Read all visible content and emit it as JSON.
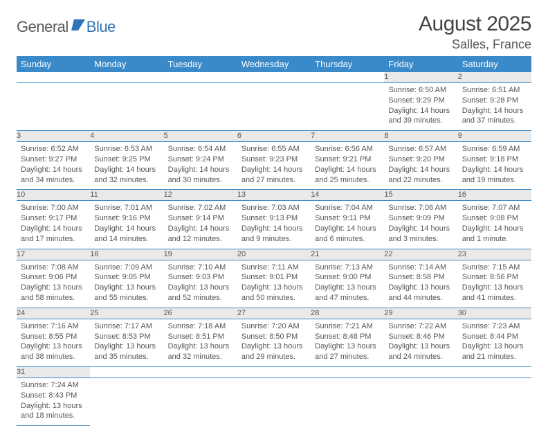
{
  "logo": {
    "word1": "General",
    "word2": "Blue",
    "icon_color": "#2e75b6"
  },
  "header": {
    "title": "August 2025",
    "location": "Salles, France"
  },
  "colors": {
    "header_bg": "#3a8ac9",
    "header_text": "#ffffff",
    "daynum_bg": "#e9e9e9",
    "row_divider": "#3a8ac9",
    "body_text": "#555555",
    "logo_gray": "#5a5a5a",
    "logo_blue": "#2e75b6"
  },
  "weekdays": [
    "Sunday",
    "Monday",
    "Tuesday",
    "Wednesday",
    "Thursday",
    "Friday",
    "Saturday"
  ],
  "weeks": [
    {
      "days": [
        null,
        null,
        null,
        null,
        null,
        {
          "n": "1",
          "sunrise": "6:50 AM",
          "sunset": "9:29 PM",
          "day_h": 14,
          "day_m": 39
        },
        {
          "n": "2",
          "sunrise": "6:51 AM",
          "sunset": "9:28 PM",
          "day_h": 14,
          "day_m": 37
        }
      ]
    },
    {
      "days": [
        {
          "n": "3",
          "sunrise": "6:52 AM",
          "sunset": "9:27 PM",
          "day_h": 14,
          "day_m": 34
        },
        {
          "n": "4",
          "sunrise": "6:53 AM",
          "sunset": "9:25 PM",
          "day_h": 14,
          "day_m": 32
        },
        {
          "n": "5",
          "sunrise": "6:54 AM",
          "sunset": "9:24 PM",
          "day_h": 14,
          "day_m": 30
        },
        {
          "n": "6",
          "sunrise": "6:55 AM",
          "sunset": "9:23 PM",
          "day_h": 14,
          "day_m": 27
        },
        {
          "n": "7",
          "sunrise": "6:56 AM",
          "sunset": "9:21 PM",
          "day_h": 14,
          "day_m": 25
        },
        {
          "n": "8",
          "sunrise": "6:57 AM",
          "sunset": "9:20 PM",
          "day_h": 14,
          "day_m": 22
        },
        {
          "n": "9",
          "sunrise": "6:59 AM",
          "sunset": "9:18 PM",
          "day_h": 14,
          "day_m": 19
        }
      ]
    },
    {
      "days": [
        {
          "n": "10",
          "sunrise": "7:00 AM",
          "sunset": "9:17 PM",
          "day_h": 14,
          "day_m": 17
        },
        {
          "n": "11",
          "sunrise": "7:01 AM",
          "sunset": "9:16 PM",
          "day_h": 14,
          "day_m": 14
        },
        {
          "n": "12",
          "sunrise": "7:02 AM",
          "sunset": "9:14 PM",
          "day_h": 14,
          "day_m": 12
        },
        {
          "n": "13",
          "sunrise": "7:03 AM",
          "sunset": "9:13 PM",
          "day_h": 14,
          "day_m": 9
        },
        {
          "n": "14",
          "sunrise": "7:04 AM",
          "sunset": "9:11 PM",
          "day_h": 14,
          "day_m": 6
        },
        {
          "n": "15",
          "sunrise": "7:06 AM",
          "sunset": "9:09 PM",
          "day_h": 14,
          "day_m": 3
        },
        {
          "n": "16",
          "sunrise": "7:07 AM",
          "sunset": "9:08 PM",
          "day_h": 14,
          "day_m": 1
        }
      ]
    },
    {
      "days": [
        {
          "n": "17",
          "sunrise": "7:08 AM",
          "sunset": "9:06 PM",
          "day_h": 13,
          "day_m": 58
        },
        {
          "n": "18",
          "sunrise": "7:09 AM",
          "sunset": "9:05 PM",
          "day_h": 13,
          "day_m": 55
        },
        {
          "n": "19",
          "sunrise": "7:10 AM",
          "sunset": "9:03 PM",
          "day_h": 13,
          "day_m": 52
        },
        {
          "n": "20",
          "sunrise": "7:11 AM",
          "sunset": "9:01 PM",
          "day_h": 13,
          "day_m": 50
        },
        {
          "n": "21",
          "sunrise": "7:13 AM",
          "sunset": "9:00 PM",
          "day_h": 13,
          "day_m": 47
        },
        {
          "n": "22",
          "sunrise": "7:14 AM",
          "sunset": "8:58 PM",
          "day_h": 13,
          "day_m": 44
        },
        {
          "n": "23",
          "sunrise": "7:15 AM",
          "sunset": "8:56 PM",
          "day_h": 13,
          "day_m": 41
        }
      ]
    },
    {
      "days": [
        {
          "n": "24",
          "sunrise": "7:16 AM",
          "sunset": "8:55 PM",
          "day_h": 13,
          "day_m": 38
        },
        {
          "n": "25",
          "sunrise": "7:17 AM",
          "sunset": "8:53 PM",
          "day_h": 13,
          "day_m": 35
        },
        {
          "n": "26",
          "sunrise": "7:18 AM",
          "sunset": "8:51 PM",
          "day_h": 13,
          "day_m": 32
        },
        {
          "n": "27",
          "sunrise": "7:20 AM",
          "sunset": "8:50 PM",
          "day_h": 13,
          "day_m": 29
        },
        {
          "n": "28",
          "sunrise": "7:21 AM",
          "sunset": "8:48 PM",
          "day_h": 13,
          "day_m": 27
        },
        {
          "n": "29",
          "sunrise": "7:22 AM",
          "sunset": "8:46 PM",
          "day_h": 13,
          "day_m": 24
        },
        {
          "n": "30",
          "sunrise": "7:23 AM",
          "sunset": "8:44 PM",
          "day_h": 13,
          "day_m": 21
        }
      ]
    },
    {
      "days": [
        {
          "n": "31",
          "sunrise": "7:24 AM",
          "sunset": "8:43 PM",
          "day_h": 13,
          "day_m": 18
        },
        null,
        null,
        null,
        null,
        null,
        null
      ]
    }
  ],
  "labels": {
    "sunrise": "Sunrise: ",
    "sunset": "Sunset: ",
    "daylight_prefix": "Daylight: ",
    "hours_word": " hours and ",
    "minute_suffix": " minutes.",
    "minute_suffix_1": " minute."
  }
}
